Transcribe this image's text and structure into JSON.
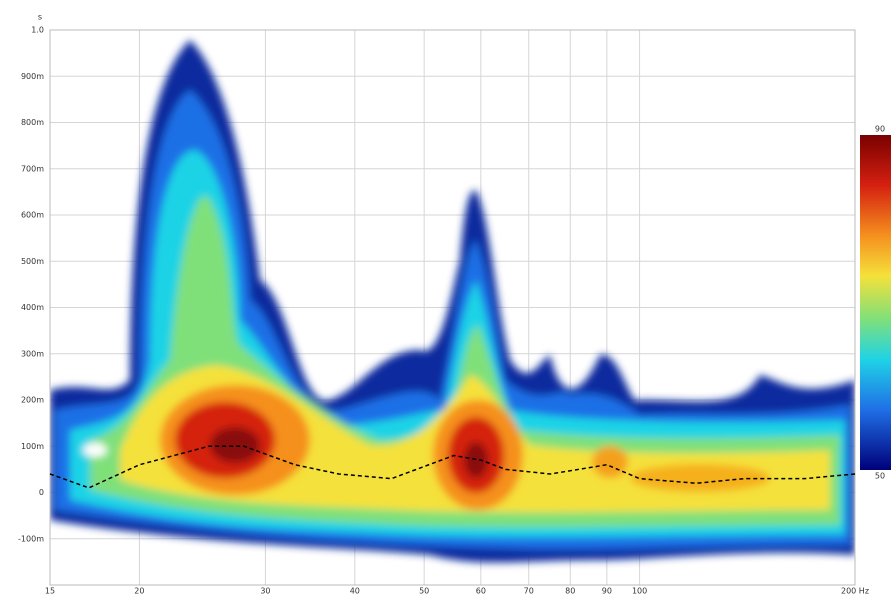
{
  "chart_data": {
    "type": "spectrogram",
    "ylabel": "s",
    "xscale": "log",
    "xlim": [
      15,
      200
    ],
    "ylim": [
      -0.2,
      1.0
    ],
    "xticks": [
      15,
      20,
      30,
      40,
      50,
      60,
      70,
      80,
      90,
      100,
      {
        "value": 200,
        "label": "200 Hz"
      }
    ],
    "yticks": [
      {
        "value": -0.1,
        "label": "-100m"
      },
      0,
      {
        "value": 0.1,
        "label": "100m"
      },
      {
        "value": 0.2,
        "label": "200m"
      },
      {
        "value": 0.3,
        "label": "300m"
      },
      {
        "value": 0.4,
        "label": "400m"
      },
      {
        "value": 0.5,
        "label": "500m"
      },
      {
        "value": 0.6,
        "label": "600m"
      },
      {
        "value": 0.7,
        "label": "700m"
      },
      {
        "value": 0.8,
        "label": "800m"
      },
      {
        "value": 0.9,
        "label": "900m"
      },
      {
        "value": 1.0,
        "label": "1.0"
      }
    ],
    "grid": true,
    "series": [
      {
        "color": "#000000",
        "x": [
          15,
          17,
          20,
          25,
          28,
          33,
          38,
          45,
          55,
          60,
          65,
          75,
          90,
          100,
          120,
          140,
          170,
          200
        ],
        "values": [
          0.04,
          0.01,
          0.06,
          0.1,
          0.1,
          0.06,
          0.04,
          0.03,
          0.08,
          0.07,
          0.05,
          0.04,
          0.06,
          0.03,
          0.02,
          0.03,
          0.03,
          0.04
        ]
      }
    ],
    "colorbar": {
      "lim": [
        50,
        90
      ],
      "ticks": [
        90,
        50
      ]
    }
  }
}
